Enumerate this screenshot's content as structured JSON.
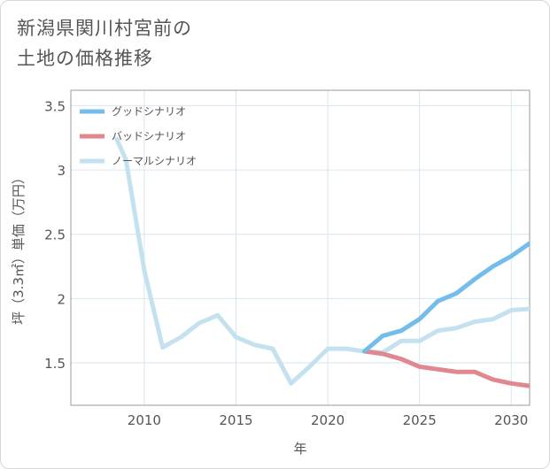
{
  "title_lines": [
    "新潟県関川村宮前の",
    "土地の価格推移"
  ],
  "chart_data": {
    "type": "line",
    "title": "新潟県関川村宮前の土地の価格推移",
    "xlabel": "年",
    "ylabel": "坪（3.3㎡）単価（万円）",
    "xlim": [
      2006,
      2031
    ],
    "ylim": [
      1.17,
      3.62
    ],
    "xticks": [
      2010,
      2015,
      2020,
      2025,
      2030
    ],
    "yticks": [
      1.5,
      2,
      2.5,
      3,
      3.5
    ],
    "xtick_labels": [
      "2010",
      "2015",
      "2020",
      "2025",
      "2030"
    ],
    "ytick_labels": [
      "1.5",
      "2",
      "2.5",
      "3",
      "3.5"
    ],
    "grid": true,
    "legend_position": "top-left",
    "series": [
      {
        "name": "グッドシナリオ",
        "color": "#74bdeb",
        "x": [
          2022,
          2023,
          2024,
          2025,
          2026,
          2027,
          2028,
          2029,
          2030,
          2031
        ],
        "y": [
          1.59,
          1.71,
          1.75,
          1.84,
          1.98,
          2.04,
          2.15,
          2.25,
          2.33,
          2.43
        ]
      },
      {
        "name": "バッドシナリオ",
        "color": "#e0878f",
        "x": [
          2022,
          2023,
          2024,
          2025,
          2026,
          2027,
          2028,
          2029,
          2030,
          2031
        ],
        "y": [
          1.59,
          1.57,
          1.53,
          1.47,
          1.45,
          1.43,
          1.43,
          1.37,
          1.34,
          1.32
        ]
      },
      {
        "name": "ノーマルシナリオ",
        "color": "#c3e1ef",
        "x": [
          2008.5,
          2009,
          2010,
          2011,
          2012,
          2013,
          2014,
          2015,
          2016,
          2017,
          2018,
          2019,
          2020,
          2021,
          2022,
          2023,
          2024,
          2025,
          2026,
          2027,
          2028,
          2029,
          2030,
          2031
        ],
        "y": [
          3.24,
          3.08,
          2.22,
          1.62,
          1.7,
          1.81,
          1.87,
          1.7,
          1.64,
          1.61,
          1.34,
          1.47,
          1.61,
          1.61,
          1.59,
          1.58,
          1.67,
          1.67,
          1.75,
          1.77,
          1.82,
          1.84,
          1.91,
          1.92
        ]
      }
    ]
  }
}
